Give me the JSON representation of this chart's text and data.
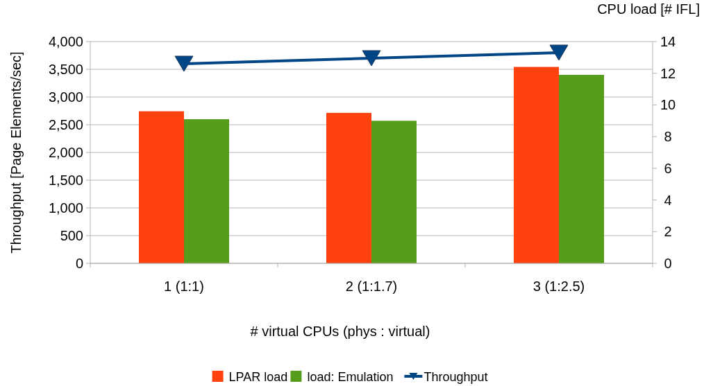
{
  "chart_data": {
    "type": "bar",
    "xlabel": "# virtual CPUs  (phys : virtual)",
    "ylabel": "Throughput [Page Elements/sec]",
    "y2label": "CPU load [# IFL]",
    "categories": [
      "1  (1:1)",
      "2  (1:1.7)",
      "3  (1:2.5)"
    ],
    "series": [
      {
        "name": "LPAR load",
        "color": "#ff420e",
        "axis": "y2",
        "values": [
          9.6,
          9.5,
          12.4
        ]
      },
      {
        "name": "load: Emulation",
        "color": "#579d1c",
        "axis": "y2",
        "values": [
          9.1,
          9.0,
          11.9
        ]
      },
      {
        "name": "Throughput",
        "type": "line",
        "color": "#004586",
        "marker": "triangle",
        "values": [
          3600,
          3700,
          3800
        ]
      }
    ],
    "ylim": [
      0,
      4000
    ],
    "yticks": [
      {
        "value": 0,
        "label": "0"
      },
      {
        "value": 500,
        "label": "500"
      },
      {
        "value": 1000,
        "label": "1,000"
      },
      {
        "value": 1500,
        "label": "1,500"
      },
      {
        "value": 2000,
        "label": "2,000"
      },
      {
        "value": 2500,
        "label": "2,500"
      },
      {
        "value": 3000,
        "label": "3,000"
      },
      {
        "value": 3500,
        "label": "3,500"
      },
      {
        "value": 4000,
        "label": "4,000"
      }
    ],
    "y2lim": [
      0,
      14
    ],
    "y2ticks": [
      0,
      2,
      4,
      6,
      8,
      10,
      12,
      14
    ],
    "grid": "y",
    "legend": "bottom"
  }
}
